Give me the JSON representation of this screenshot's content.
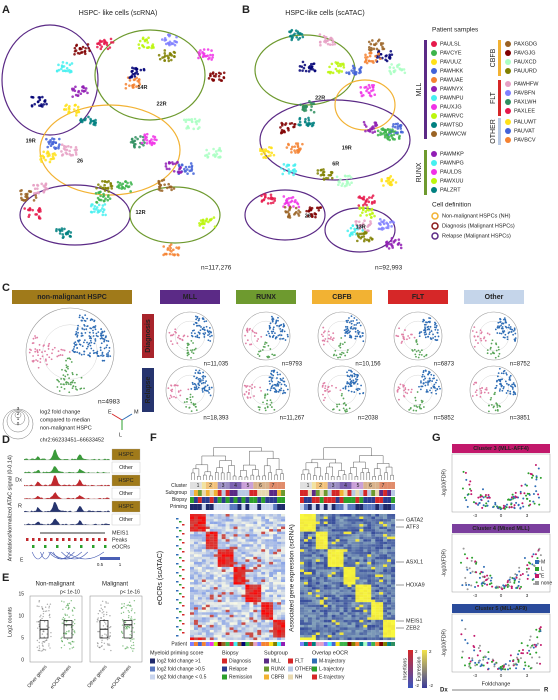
{
  "A": {
    "letter": "A",
    "title": "HSPC- like cells (scRNA)",
    "n": "n=117,276",
    "labels": [
      "22R",
      "26",
      "12R",
      "19R",
      "14R"
    ]
  },
  "B": {
    "letter": "B",
    "title": "HSPC-like cells (scATAC)",
    "n": "n=92,993",
    "labels": [
      "26",
      "22R",
      "19R",
      "13R",
      "6R"
    ]
  },
  "legend": {
    "title": "Patient samples",
    "groups": [
      {
        "name": "MLL",
        "color": "#5b2a86",
        "samples": [
          "PAULSL",
          "PAVCYE",
          "PAVUUZ",
          "PAWHKK",
          "PAWUAE",
          "PAWNYX",
          "PAWNPU",
          "PAUXJG",
          "PAWRVC",
          "PAWTSD",
          "PAWWCW"
        ]
      },
      {
        "name": "RUNX",
        "color": "#6e9a2f",
        "samples": [
          "PAWMKP",
          "PAWNPG",
          "PAULDS",
          "PAWXUU",
          "PALZRT"
        ]
      },
      {
        "name": "CBFB",
        "color": "#f2b233",
        "samples": [
          "PAXGDG",
          "PAVGJG",
          "PAUXCD",
          "PAUURD"
        ]
      },
      {
        "name": "FLT",
        "color": "#d62728",
        "samples": [
          "PAWHFW",
          "PAVBFN",
          "PAXLWH",
          "PAXLEE"
        ]
      },
      {
        "name": "OTHER",
        "color": "#b8c9e4",
        "samples": [
          "PALUWT",
          "PAUVAT",
          "PAVBCV"
        ]
      }
    ],
    "cell_title": "Cell definition",
    "cells": [
      {
        "label": "Non-malignant HSPCs (NH)",
        "color": "#f2b233"
      },
      {
        "label": "Diagnosis (Malignant HSPCs)",
        "color": "#8b1a1a"
      },
      {
        "label": "Relapse (Malignant HSPCs)",
        "color": "#5b2a86"
      }
    ]
  },
  "C": {
    "letter": "C",
    "reference": {
      "label": "non-malignant HSPC",
      "color": "#a07a1a",
      "n": "n=4983"
    },
    "scale": [
      3,
      2,
      1,
      0
    ],
    "note": [
      "log2 fold change",
      "compared to median",
      "non-malignant HSPC"
    ],
    "axes": [
      "E",
      "M",
      "L"
    ],
    "rows": [
      {
        "label": "Diagnosis",
        "color": "#a8242b"
      },
      {
        "label": "Relapse",
        "color": "#26346e"
      }
    ],
    "columns": [
      {
        "label": "MLL",
        "color": "#5b2a86",
        "n": [
          "n=11,035",
          "n=18,393"
        ]
      },
      {
        "label": "RUNX",
        "color": "#6e9a2f",
        "n": [
          "n=9793",
          "n=11,267"
        ]
      },
      {
        "label": "CBFB",
        "color": "#f2b233",
        "n": [
          "n=10,156",
          "n=2038"
        ]
      },
      {
        "label": "FLT",
        "color": "#d62728",
        "n": [
          "n=6873",
          "n=5852"
        ]
      },
      {
        "label": "Other",
        "color": "#c5d5ea",
        "n": [
          "n=8752",
          "n=3851"
        ]
      }
    ]
  },
  "D": {
    "letter": "D",
    "region": "chr2:66233451–66633452",
    "ylabel": "Normalized ATAC signal (0-0.14)",
    "tracks": [
      {
        "label": "HSPC",
        "color": "#3a9a3a"
      },
      {
        "label": "Other",
        "color": "#3a9a3a"
      },
      {
        "label": "HSPC",
        "color": "#c0282d"
      },
      {
        "label": "Other",
        "color": "#c0282d"
      },
      {
        "label": "HSPC",
        "color": "#26346e"
      },
      {
        "label": "Other",
        "color": "#26346e"
      }
    ],
    "groups": [
      "Dx",
      "R"
    ],
    "annotations": "Annotations",
    "gene": "MEIS1",
    "rows": [
      "Peaks",
      "eOCRs"
    ],
    "scale": [
      "E",
      "0.5",
      "1"
    ]
  },
  "E": {
    "letter": "E",
    "panels": [
      {
        "title": "Non-malignant",
        "p": "p< 1e-10"
      },
      {
        "title": "Malignant",
        "p": "p< 1e-16"
      }
    ],
    "ylabel": "Log2 counts",
    "yticks": [
      0,
      5,
      10,
      15
    ],
    "xlabels": [
      "Other genes",
      "eOCR genes"
    ]
  },
  "F": {
    "letter": "F",
    "rows": [
      "Cluster",
      "Subgroup",
      "Biopsy",
      "Priming"
    ],
    "patient": "Patient",
    "clusters": [
      "1",
      "2",
      "3",
      "4",
      "5",
      "6",
      "7"
    ],
    "left_label": "eOCRs (scATAC)",
    "right_label": "Associated gene expression (scRNA)",
    "genes": [
      "GATA2",
      "ATF3",
      "ASXL1",
      "HOXA9",
      "MEIS1",
      "ZEB2"
    ],
    "legends": [
      {
        "title": "Myeloid priming score",
        "items": [
          {
            "label": "log2 fold change >1",
            "color": "#1f2a6b"
          },
          {
            "label": "log2 fold change >0.5",
            "color": "#5a78c0"
          },
          {
            "label": "log2 fold change < 0.5",
            "color": "#c8d4ee"
          }
        ]
      },
      {
        "title": "Biopsy",
        "items": [
          {
            "label": "Diagnosis",
            "color": "#d62728"
          },
          {
            "label": "Relapse",
            "color": "#2b3b8f"
          },
          {
            "label": "Remission",
            "color": "#2ca02c"
          }
        ]
      },
      {
        "title": "Subgroup",
        "items": [
          {
            "label": "MLL",
            "color": "#5b2a86"
          },
          {
            "label": "RUNX",
            "color": "#6e9a2f"
          },
          {
            "label": "CBFB",
            "color": "#f2b233"
          },
          {
            "label": "FLT",
            "color": "#d62728"
          },
          {
            "label": "OTHER",
            "color": "#b8c9e4"
          },
          {
            "label": "NH",
            "color": "#e8d9b0"
          }
        ]
      },
      {
        "title": "Overlap eOCR",
        "items": [
          {
            "label": "M-trajectory",
            "color": "#2f6db5"
          },
          {
            "label": "L-trajectory",
            "color": "#2ca02c"
          },
          {
            "label": "E-trajectory",
            "color": "#d62728"
          }
        ]
      }
    ],
    "insertions": "Insertions",
    "expression": "Expression",
    "scale": [
      2,
      -2
    ]
  },
  "G": {
    "letter": "G",
    "panels": [
      {
        "title": "Cluster 3 (MLL-AFF4)",
        "color": "#c2186b"
      },
      {
        "title": "Cluster 4 (Mixed MLL)",
        "color": "#7b3f9e"
      },
      {
        "title": "Cluster 5 (MLL-AF9)",
        "color": "#2a4b9b"
      }
    ],
    "ylabel": "-log10(FDR)",
    "xlabel": "Foldchange",
    "dx": "Dx",
    "r": "R",
    "xticks": [
      -3,
      0,
      3
    ],
    "legend": [
      {
        "label": "M",
        "color": "#2f6db5"
      },
      {
        "label": "L",
        "color": "#2ca02c"
      },
      {
        "label": "E",
        "color": "#c2186b"
      },
      {
        "label": "none",
        "color": "#999999"
      }
    ]
  }
}
